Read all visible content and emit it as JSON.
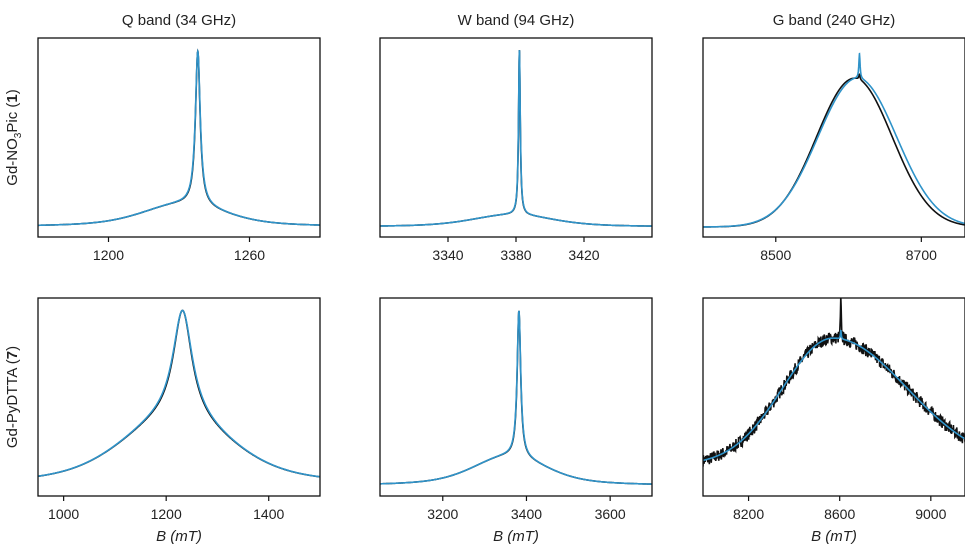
{
  "figure": {
    "column_titles": [
      "Q band (34 GHz)",
      "W band (94 GHz)",
      "G band (240 GHz)"
    ],
    "row_labels": [
      {
        "prefix": "Gd-NO",
        "sub": "3",
        "mid": "Pic (",
        "bold": "1",
        "suffix": ")"
      },
      {
        "prefix": "Gd-PyDTTA (",
        "sub": "",
        "mid": "",
        "bold": "7",
        "suffix": ")"
      }
    ],
    "xlabel_main": "B",
    "xlabel_unit": "(mT)"
  },
  "colors": {
    "experiment": "#111111",
    "simulation": "#2f93c9"
  },
  "chart_data": [
    {
      "type": "line",
      "title": "Q band (34 GHz)",
      "row_label": "Gd-NO3Pic (1)",
      "xlabel": "",
      "ylabel": "",
      "xlim": [
        1170,
        1290
      ],
      "xticks": [
        1200,
        1260
      ],
      "peak_center": 1238,
      "peak_width": 1.2,
      "broad_center": 1232,
      "broad_width": 18,
      "broad_height": 0.13,
      "baseline": 0.0,
      "noise": 0.0,
      "series": [
        {
          "values": []
        },
        {
          "values": []
        }
      ]
    },
    {
      "type": "line",
      "title": "W band (94 GHz)",
      "row_label": "Gd-NO3Pic (1)",
      "xlabel": "",
      "ylabel": "",
      "xlim": [
        3300,
        3460
      ],
      "xticks": [
        3340,
        3380,
        3420
      ],
      "peak_center": 3382,
      "peak_width": 0.6,
      "broad_center": 3378,
      "broad_width": 24,
      "broad_height": 0.07,
      "baseline": 0.0,
      "noise": 0.0,
      "series": [
        {
          "values": []
        },
        {
          "values": []
        }
      ]
    },
    {
      "type": "line",
      "title": "G band (240 GHz)",
      "row_label": "Gd-NO3Pic (1)",
      "xlabel": "",
      "ylabel": "",
      "xlim": [
        8400,
        8760
      ],
      "xticks": [
        8500,
        8700
      ],
      "broad_center": 8608,
      "broad_width": 52,
      "broad_height": 0.84,
      "peak_center": 8615,
      "peak_width": 1.0,
      "baseline": 0.0,
      "noise": 0.0,
      "series": [
        {
          "values": []
        },
        {
          "values": []
        }
      ]
    },
    {
      "type": "line",
      "title": "",
      "row_label": "Gd-PyDTTA (7)",
      "xlabel": "B (mT)",
      "ylabel": "",
      "xlim": [
        950,
        1500
      ],
      "xticks": [
        1000,
        1200,
        1400
      ],
      "peak_center": 1232,
      "peak_width": 22,
      "broad_center": 1220,
      "broad_width": 110,
      "broad_height": 0.38,
      "baseline": 0.0,
      "noise": 0.0,
      "series": [
        {
          "values": []
        },
        {
          "values": []
        }
      ]
    },
    {
      "type": "line",
      "title": "",
      "row_label": "Gd-PyDTTA (7)",
      "xlabel": "B (mT)",
      "ylabel": "",
      "xlim": [
        3050,
        3700
      ],
      "xticks": [
        3200,
        3400,
        3600
      ],
      "peak_center": 3382,
      "peak_width": 5,
      "broad_center": 3360,
      "broad_width": 90,
      "broad_height": 0.17,
      "baseline": 0.0,
      "noise": 0.0,
      "series": [
        {
          "values": []
        },
        {
          "values": []
        }
      ]
    },
    {
      "type": "line",
      "title": "",
      "row_label": "Gd-PyDTTA (7)",
      "xlabel": "B (mT)",
      "ylabel": "",
      "xlim": [
        8000,
        9150
      ],
      "xticks": [
        8200,
        8600,
        9000
      ],
      "broad_center": 8570,
      "broad_width": 210,
      "broad_height": 0.72,
      "peak_center": 8605,
      "peak_width": 2,
      "baseline": 0.12,
      "noise": 0.035,
      "series": [
        {
          "values": []
        },
        {
          "values": []
        }
      ]
    }
  ]
}
